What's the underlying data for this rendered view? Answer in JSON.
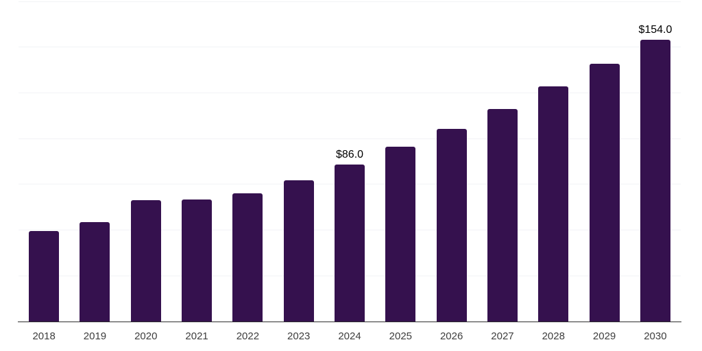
{
  "chart": {
    "title": "",
    "background": "#ffffff",
    "colors": {
      "bar": "#35114E",
      "gridline": "#f2f3f6",
      "axis_line": "#2e2e2e",
      "tick_label": "#3d3d3d",
      "value_label": "#000000"
    }
  },
  "chart_data": {
    "type": "bar",
    "title": "",
    "xlabel": "",
    "ylabel": "",
    "categories": [
      "2018",
      "2019",
      "2020",
      "2021",
      "2022",
      "2023",
      "2024",
      "2025",
      "2026",
      "2027",
      "2028",
      "2029",
      "2030"
    ],
    "values": [
      49.6,
      54.2,
      66.2,
      66.7,
      70.2,
      77.3,
      86.0,
      95.7,
      105.5,
      116.3,
      128.4,
      140.9,
      154.0
    ],
    "data_labels": [
      "",
      "",
      "",
      "",
      "",
      "",
      "$86.0",
      "",
      "",
      "",
      "",
      "",
      "$154.0"
    ],
    "value_prefix": "$",
    "ylim": [
      0,
      175
    ],
    "ytick_step": 25,
    "grid": "horizontal",
    "gridlines_visible_values": [
      25,
      50,
      75,
      100,
      125,
      150,
      175
    ],
    "legend": "none",
    "bar_color": "#35114E"
  }
}
